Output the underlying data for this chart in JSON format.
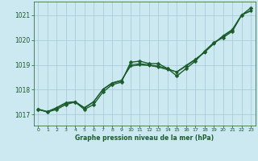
{
  "title": "Graphe pression niveau de la mer (hPa)",
  "background_color": "#cce8f0",
  "grid_color": "#aaccda",
  "line_color": "#1a5c2a",
  "x_ticks": [
    0,
    1,
    2,
    3,
    4,
    5,
    6,
    7,
    8,
    9,
    10,
    11,
    12,
    13,
    14,
    15,
    16,
    17,
    18,
    19,
    20,
    21,
    22,
    23
  ],
  "y_ticks": [
    1017,
    1018,
    1019,
    1020,
    1021
  ],
  "ylim": [
    1016.55,
    1021.55
  ],
  "xlim": [
    -0.5,
    23.5
  ],
  "series": [
    {
      "x": [
        0,
        1,
        2,
        3,
        4,
        5,
        6,
        7,
        8,
        9,
        10,
        11,
        12,
        13,
        14,
        15,
        16,
        17,
        18,
        19,
        20,
        21,
        22,
        23
      ],
      "y": [
        1017.2,
        1017.1,
        1017.2,
        1017.4,
        1017.5,
        1017.2,
        1017.4,
        1017.9,
        1018.2,
        1018.3,
        1019.1,
        1019.15,
        1019.05,
        1019.05,
        1018.85,
        1018.55,
        1018.85,
        1019.15,
        1019.55,
        1019.9,
        1020.1,
        1020.35,
        1021.0,
        1021.3
      ],
      "marker": "D",
      "lw": 1.0,
      "ms": 2.5
    },
    {
      "x": [
        0,
        1,
        2,
        3,
        4,
        5,
        6,
        7,
        8,
        9,
        10,
        11,
        12,
        13,
        14,
        15,
        16,
        17,
        18,
        19,
        20,
        21,
        22,
        23
      ],
      "y": [
        1017.2,
        1017.1,
        1017.25,
        1017.45,
        1017.5,
        1017.25,
        1017.5,
        1018.0,
        1018.25,
        1018.35,
        1019.0,
        1019.05,
        1019.0,
        1018.95,
        1018.85,
        1018.7,
        1018.95,
        1019.2,
        1019.5,
        1019.85,
        1020.15,
        1020.4,
        1021.0,
        1021.2
      ],
      "marker": "D",
      "lw": 0.8,
      "ms": 2.0
    },
    {
      "x": [
        0,
        1,
        2,
        3,
        4,
        5,
        6,
        7,
        8,
        9,
        10,
        11,
        12,
        13,
        14,
        15,
        16,
        17,
        18,
        19,
        20,
        21,
        22,
        23
      ],
      "y": [
        1017.22,
        1017.12,
        1017.28,
        1017.48,
        1017.52,
        1017.28,
        1017.52,
        1018.02,
        1018.28,
        1018.38,
        1018.96,
        1019.01,
        1018.99,
        1018.92,
        1018.82,
        1018.72,
        1018.98,
        1019.23,
        1019.52,
        1019.87,
        1020.18,
        1020.43,
        1021.02,
        1021.18
      ],
      "marker": "D",
      "lw": 0.7,
      "ms": 1.5
    },
    {
      "x": [
        0,
        1,
        2,
        3,
        4,
        5,
        6,
        7,
        8,
        9,
        10,
        11,
        12,
        13,
        14,
        15,
        16,
        17,
        18,
        19,
        20,
        21,
        22,
        23
      ],
      "y": [
        1017.21,
        1017.11,
        1017.27,
        1017.47,
        1017.51,
        1017.27,
        1017.51,
        1018.01,
        1018.27,
        1018.37,
        1018.94,
        1018.99,
        1018.97,
        1018.9,
        1018.8,
        1018.73,
        1018.97,
        1019.22,
        1019.51,
        1019.86,
        1020.16,
        1020.41,
        1021.01,
        1021.16
      ],
      "marker": "D",
      "lw": 0.6,
      "ms": 1.2
    }
  ]
}
